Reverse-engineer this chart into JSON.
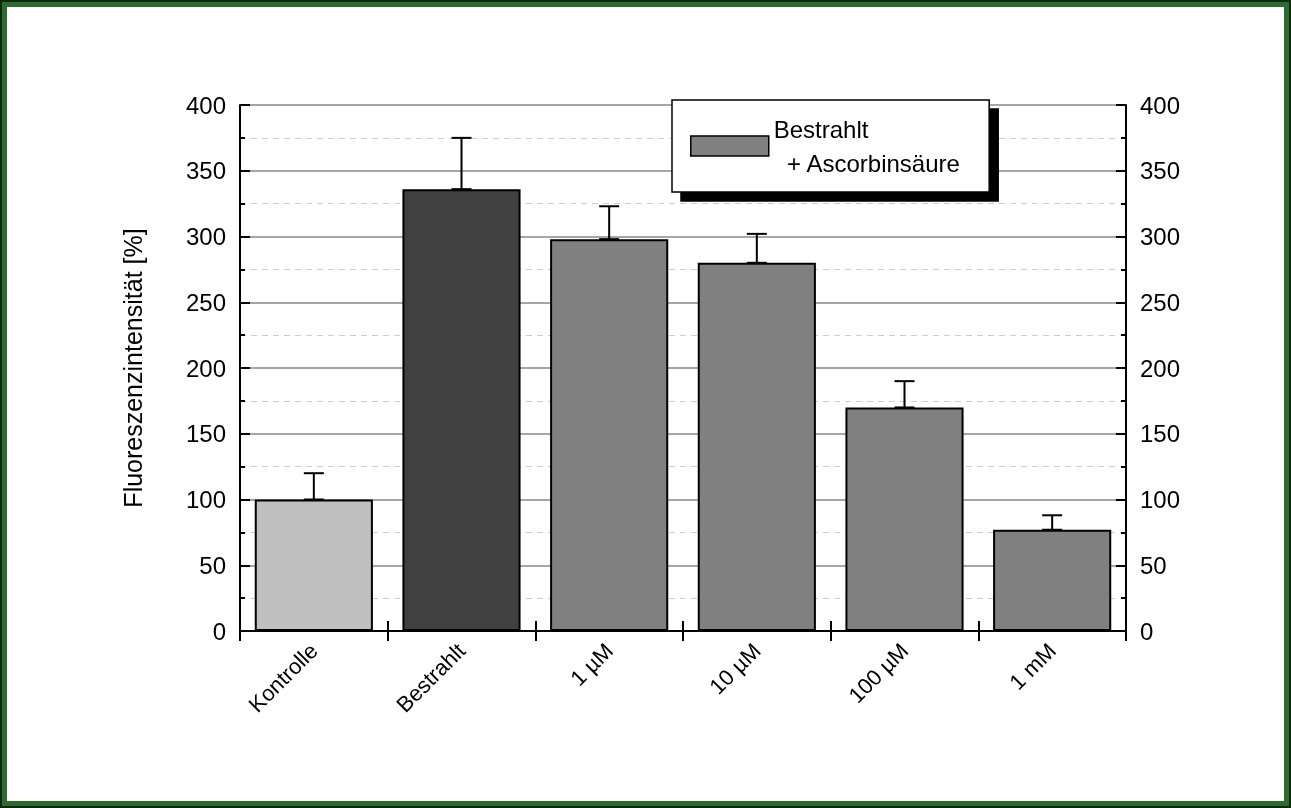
{
  "chart_data": {
    "type": "bar",
    "categories": [
      "Kontrolle",
      "Bestrahlt",
      "1 µM",
      "10 µM",
      "100 µM",
      "1 mM"
    ],
    "ylabel": "Fluoreszenzintensität [%]",
    "series": [
      {
        "color": "#c0c0c0",
        "values": [
          100,
          null,
          null,
          null,
          null,
          null
        ],
        "errors": [
          [
            100,
            120
          ],
          null,
          null,
          null,
          null,
          null
        ]
      },
      {
        "color": "#404040",
        "values": [
          null,
          336,
          null,
          null,
          null,
          null
        ],
        "errors": [
          null,
          [
            336,
            375
          ],
          null,
          null,
          null,
          null
        ]
      },
      {
        "name": "Bestrahlt\n  + Ascorbinsäure",
        "color": "#808080",
        "values": [
          null,
          null,
          298,
          280,
          170,
          77
        ],
        "errors": [
          null,
          null,
          [
            298,
            323
          ],
          [
            280,
            302
          ],
          [
            170,
            190
          ],
          [
            77,
            88
          ]
        ]
      }
    ],
    "ylim": [
      0,
      400
    ],
    "yticks": [
      0,
      50,
      100,
      150,
      200,
      250,
      300,
      350,
      400
    ],
    "y2lim": [
      0,
      400
    ],
    "y2ticks": [
      0,
      50,
      100,
      150,
      200,
      250,
      300,
      350,
      400
    ],
    "grid": "y",
    "legend": "top right"
  }
}
